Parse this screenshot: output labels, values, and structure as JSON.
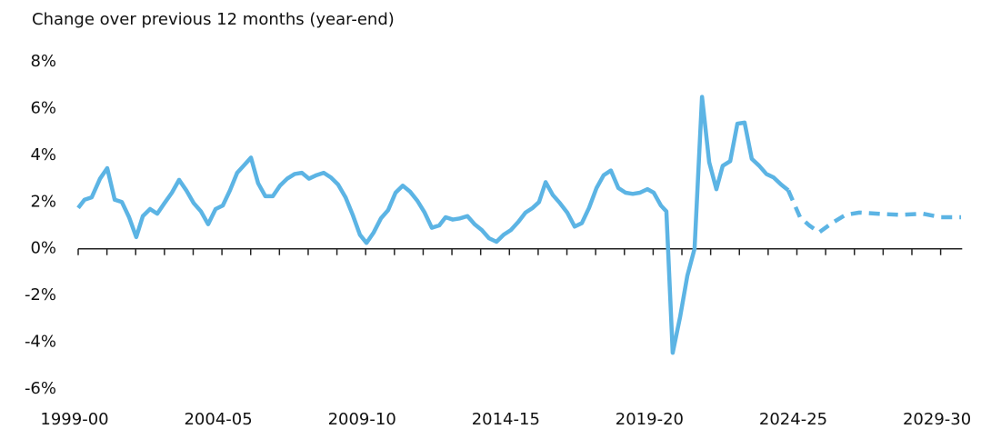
{
  "chart_data": {
    "type": "line",
    "title": "Change over previous 12 months (year-end)",
    "x": [
      1999.0,
      1999.22,
      1999.47,
      1999.76,
      2000.01,
      2000.27,
      2000.52,
      2000.77,
      2001.02,
      2001.25,
      2001.5,
      2001.75,
      2002.0,
      2002.26,
      2002.51,
      2002.76,
      2003.02,
      2003.27,
      2003.52,
      2003.78,
      2004.03,
      2004.28,
      2004.53,
      2004.79,
      2005.01,
      2005.26,
      2005.51,
      2005.77,
      2006.02,
      2006.27,
      2006.53,
      2006.78,
      2007.03,
      2007.29,
      2007.54,
      2007.79,
      2008.04,
      2008.3,
      2008.55,
      2008.8,
      2009.03,
      2009.28,
      2009.53,
      2009.78,
      2010.04,
      2010.29,
      2010.54,
      2010.8,
      2011.05,
      2011.3,
      2011.56,
      2011.78,
      2012.03,
      2012.28,
      2012.54,
      2012.79,
      2013.04,
      2013.29,
      2013.55,
      2013.8,
      2014.05,
      2014.31,
      2014.56,
      2014.81,
      2015.03,
      2015.26,
      2015.51,
      2015.76,
      2016.01,
      2016.27,
      2016.52,
      2016.77,
      2017.03,
      2017.28,
      2017.53,
      2017.79,
      2018.04,
      2018.29,
      2018.54,
      2018.8,
      2019.02,
      2019.27,
      2019.46,
      2019.68,
      2019.94,
      2020.19,
      2020.44,
      2020.7,
      2020.95,
      2021.2,
      2021.42,
      2021.68,
      2021.93,
      2022.18,
      2022.43,
      2022.69,
      2022.94,
      2023.19,
      2023.45,
      2023.7,
      2024.11,
      2024.43,
      2024.77,
      2025.22,
      2025.69,
      2026.17,
      2026.8,
      2027.59,
      2028.38,
      2029.01,
      2029.71
    ],
    "series": [
      {
        "color": "#5cb4e4",
        "dashed": false,
        "values": [
          1.75,
          2.1,
          2.2,
          3.0,
          3.45,
          2.1,
          2.0,
          1.35,
          0.5,
          1.4,
          1.7,
          1.5,
          1.95,
          2.4,
          2.95,
          2.5,
          1.95,
          1.6,
          1.05,
          1.7,
          1.85,
          2.5,
          3.25,
          3.6,
          3.9,
          2.8,
          2.25,
          2.25,
          2.7,
          3.0,
          3.2,
          3.25,
          3.0,
          3.15,
          3.25,
          3.05,
          2.75,
          2.2,
          1.45,
          0.6,
          0.25,
          0.7,
          1.3,
          1.65,
          2.4,
          2.7,
          2.45,
          2.05,
          1.55,
          0.9,
          1.0,
          1.35,
          1.25,
          1.3,
          1.4,
          1.05,
          0.8,
          0.45,
          0.3,
          0.6,
          0.8,
          1.15,
          1.55,
          1.75,
          2.0,
          2.85,
          2.3,
          1.95,
          1.55,
          0.95,
          1.1,
          1.75,
          2.6,
          3.15,
          3.35,
          2.6,
          2.4,
          2.35,
          2.4,
          2.55,
          2.4,
          1.85,
          1.6,
          -4.45,
          -2.9,
          -1.15,
          0.0,
          6.5,
          3.7,
          2.55,
          3.55,
          3.75,
          5.35,
          5.4,
          3.85,
          3.55,
          3.2,
          3.05,
          2.75,
          2.5,
          null,
          null,
          null,
          null,
          null,
          null,
          null,
          null,
          null,
          null,
          null
        ]
      },
      {
        "color": "#5cb4e4",
        "dashed": true,
        "values": [
          null,
          null,
          null,
          null,
          null,
          null,
          null,
          null,
          null,
          null,
          null,
          null,
          null,
          null,
          null,
          null,
          null,
          null,
          null,
          null,
          null,
          null,
          null,
          null,
          null,
          null,
          null,
          null,
          null,
          null,
          null,
          null,
          null,
          null,
          null,
          null,
          null,
          null,
          null,
          null,
          null,
          null,
          null,
          null,
          null,
          null,
          null,
          null,
          null,
          null,
          null,
          null,
          null,
          null,
          null,
          null,
          null,
          null,
          null,
          null,
          null,
          null,
          null,
          null,
          null,
          null,
          null,
          null,
          null,
          null,
          null,
          null,
          null,
          null,
          null,
          null,
          null,
          null,
          null,
          null,
          null,
          null,
          null,
          null,
          null,
          null,
          null,
          null,
          null,
          null,
          null,
          null,
          null,
          null,
          null,
          null,
          null,
          null,
          null,
          2.5,
          1.35,
          1.0,
          0.7,
          1.1,
          1.45,
          1.55,
          1.5,
          1.45,
          1.5,
          1.35,
          1.35
        ]
      }
    ],
    "xlim": [
      1999,
      2029.75
    ],
    "xticks": [
      {
        "value": 1999,
        "label": "1999-00"
      },
      {
        "value": 2004,
        "label": "2004-05"
      },
      {
        "value": 2009,
        "label": "2009-10"
      },
      {
        "value": 2014,
        "label": "2014-15"
      },
      {
        "value": 2019,
        "label": "2019-20"
      },
      {
        "value": 2024,
        "label": "2024-25"
      },
      {
        "value": 2029,
        "label": "2029-30"
      }
    ],
    "xminorticks": [
      2000,
      2001,
      2002,
      2003,
      2005,
      2006,
      2007,
      2008,
      2010,
      2011,
      2012,
      2013,
      2015,
      2016,
      2017,
      2018,
      2020,
      2021,
      2022,
      2023,
      2025,
      2026,
      2027,
      2028
    ],
    "ylim": [
      -6,
      8
    ],
    "yticks": [
      {
        "value": -6,
        "label": "-6%"
      },
      {
        "value": -4,
        "label": "-4%"
      },
      {
        "value": -2,
        "label": "-2%"
      },
      {
        "value": 0,
        "label": "0%"
      },
      {
        "value": 2,
        "label": "2%"
      },
      {
        "value": 4,
        "label": "4%"
      },
      {
        "value": 6,
        "label": "6%"
      },
      {
        "value": 8,
        "label": "8%"
      }
    ],
    "grid": false
  }
}
